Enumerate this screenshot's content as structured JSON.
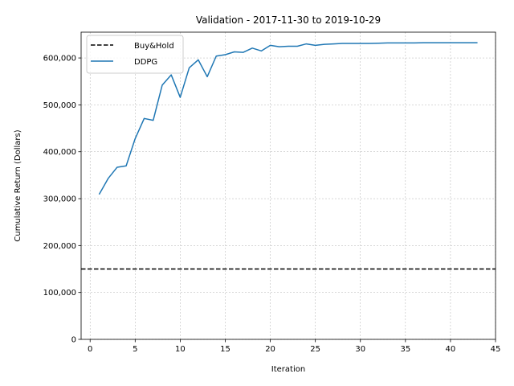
{
  "chart_data": {
    "type": "line",
    "title": "Validation - 2017-11-30 to 2019-10-29",
    "xlabel": "Iteration",
    "ylabel": "Cumulative Return (Dollars)",
    "xlim": [
      -1,
      45
    ],
    "ylim": [
      0,
      655000
    ],
    "xticks": [
      0,
      5,
      10,
      15,
      20,
      25,
      30,
      35,
      40,
      45
    ],
    "yticks": [
      0,
      100000,
      200000,
      300000,
      400000,
      500000,
      600000
    ],
    "ytick_labels": [
      "0",
      "100,000",
      "200,000",
      "300,000",
      "400,000",
      "500,000",
      "600,000"
    ],
    "grid": true,
    "legend_position": "top-left",
    "series": [
      {
        "name": "Buy&Hold",
        "style": "dashed",
        "color": "#000000",
        "kind": "hline",
        "value": 150000
      },
      {
        "name": "DDPG",
        "style": "solid",
        "color": "#1f77b4",
        "x": [
          1,
          2,
          3,
          4,
          5,
          6,
          7,
          8,
          9,
          10,
          11,
          12,
          13,
          14,
          15,
          16,
          17,
          18,
          19,
          20,
          21,
          22,
          23,
          24,
          25,
          26,
          27,
          28,
          29,
          30,
          31,
          32,
          33,
          34,
          35,
          36,
          37,
          38,
          39,
          40,
          41,
          42,
          43
        ],
        "y": [
          309000,
          343000,
          367000,
          370000,
          428000,
          471000,
          467000,
          542000,
          564000,
          516000,
          579000,
          596000,
          560000,
          604000,
          607000,
          613000,
          612000,
          621000,
          615000,
          627000,
          624000,
          625000,
          625000,
          630000,
          627000,
          629000,
          630000,
          631000,
          631000,
          631000,
          631000,
          631500,
          632000,
          632000,
          632000,
          632000,
          632500,
          632500,
          632500,
          632500,
          632500,
          632500,
          632500
        ]
      }
    ]
  }
}
